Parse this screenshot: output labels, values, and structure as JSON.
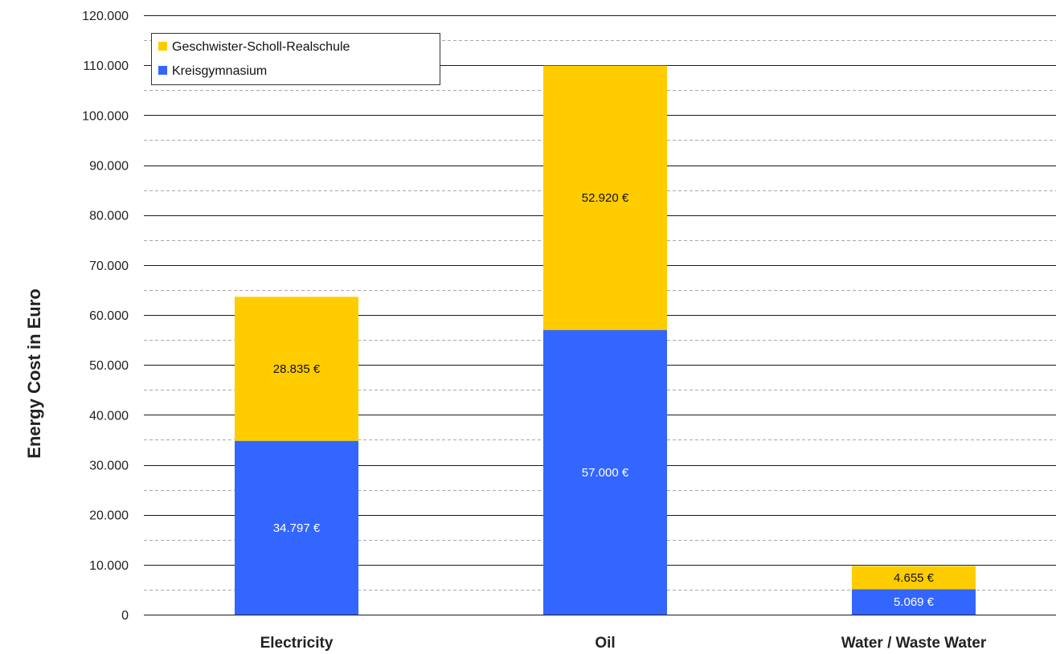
{
  "chart_data": {
    "type": "bar",
    "stacked": true,
    "categories": [
      "Electricity",
      "Oil",
      "Water / Waste Water"
    ],
    "series": [
      {
        "name": "Kreisgymnasium",
        "values": [
          34797,
          57000,
          5069
        ],
        "labels": [
          "34.797 €",
          "57.000 €",
          "5.069 €"
        ],
        "color": "#3366ff",
        "label_color": "#ffffff"
      },
      {
        "name": "Geschwister-Scholl-Realschule",
        "values": [
          28835,
          52920,
          4655
        ],
        "labels": [
          "28.835 €",
          "52.920 €",
          "4.655 €"
        ],
        "color": "#ffcc00",
        "label_color": "#111111"
      }
    ],
    "ylabel": "Energy Cost in Euro",
    "ylim": [
      0,
      120000
    ],
    "yticks": [
      0,
      10000,
      20000,
      30000,
      40000,
      50000,
      60000,
      70000,
      80000,
      90000,
      100000,
      110000,
      120000
    ],
    "ytick_labels": [
      "0",
      "10.000",
      "20.000",
      "30.000",
      "40.000",
      "50.000",
      "60.000",
      "70.000",
      "80.000",
      "90.000",
      "100.000",
      "110.000",
      "120.000"
    ],
    "grid": "major solid, minor dashed",
    "legend": {
      "position": "top-left",
      "order": [
        "Geschwister-Scholl-Realschule",
        "Kreisgymnasium"
      ]
    }
  }
}
